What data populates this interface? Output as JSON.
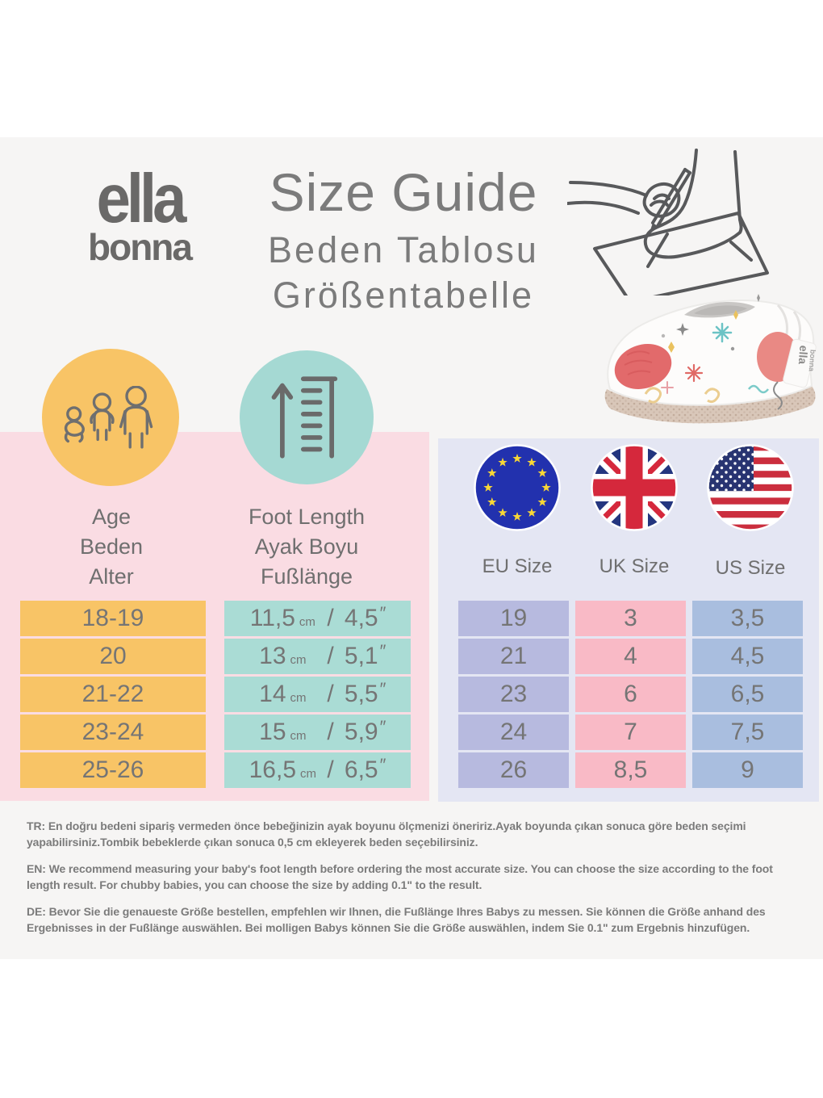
{
  "colors": {
    "card-bg": "#f6f5f4",
    "pink-panel": "#fadce3",
    "lavender-panel": "#e4e6f3",
    "yellow": "#f8c466",
    "teal-circle": "#a5d9d3",
    "teal-cell": "#aadcd5",
    "eu-cell": "#b7badf",
    "uk-cell": "#f9bac6",
    "us-cell": "#a9bedf",
    "ink": "#757575",
    "title-ink": "#7b7b7b",
    "logo-ink": "#6a6968",
    "label-ink": "#6f6f6f",
    "footnote-ink": "#7b7b7b"
  },
  "brand": {
    "line1": "ella",
    "line2": "bonna"
  },
  "title": {
    "main": "Size Guide",
    "sub1": "Beden Tablosu",
    "sub2": "Größentabelle"
  },
  "headers": {
    "age_lines": [
      "Age",
      "Beden",
      "Alter"
    ],
    "foot_lines": [
      "Foot Length",
      "Ayak Boyu",
      "Fußlänge"
    ],
    "eu": "EU Size",
    "uk": "UK Size",
    "us": "US Size"
  },
  "icons": {
    "family-icon": "baby-child-adult outline figures",
    "ruler-icon": "up-arrow beside ruler",
    "eu-flag-icon": "EU flag circle",
    "uk-flag-icon": "UK flag circle",
    "us-flag-icon": "US flag circle",
    "foot-measuring-illustration": "hand tracing a foot on paper with pencil",
    "shoe-photo": "white baby shoe with balloon and confetti print"
  },
  "shoe": {
    "tag_line1": "ella",
    "tag_line2": "bonna"
  },
  "table": {
    "age": [
      "18-19",
      "20",
      "21-22",
      "23-24",
      "25-26"
    ],
    "foot": [
      {
        "cm": "11,5",
        "inch": "4,5"
      },
      {
        "cm": "13",
        "inch": "5,1"
      },
      {
        "cm": "14",
        "inch": "5,5"
      },
      {
        "cm": "15",
        "inch": "5,9"
      },
      {
        "cm": "16,5",
        "inch": "6,5"
      }
    ],
    "cm_unit": "cm",
    "inch_mark": "″",
    "eu": [
      "19",
      "21",
      "23",
      "24",
      "26"
    ],
    "uk": [
      "3",
      "4",
      "6",
      "7",
      "8,5"
    ],
    "us": [
      "3,5",
      "4,5",
      "6,5",
      "7,5",
      "9"
    ]
  },
  "footnotes": {
    "tr": "TR: En doğru bedeni sipariş vermeden önce bebeğinizin ayak boyunu ölçmenizi öneririz.Ayak boyunda çıkan sonuca göre beden seçimi yapabilirsiniz.Tombik bebeklerde çıkan sonuca 0,5 cm ekleyerek beden seçebilirsiniz.",
    "en": "EN: We recommend measuring your baby's foot length before ordering the most accurate size. You can choose the size according to the foot length result. For chubby babies, you can choose the size by adding 0.1\"  to the result.",
    "de": "DE: Bevor Sie die genaueste Größe bestellen, empfehlen wir Ihnen, die Fußlänge Ihres Babys zu messen. Sie können die Größe anhand des Ergebnisses in der Fußlänge auswählen. Bei molligen Babys können Sie die Größe auswählen, indem Sie 0.1\" zum Ergebnis hinzufügen."
  },
  "chart_data": {
    "type": "table",
    "title": "Size Guide / Beden Tablosu / Größentabelle",
    "columns": [
      "Age (Age/Beden/Alter)",
      "Foot Length (cm)",
      "Foot Length (inch)",
      "EU Size",
      "UK Size",
      "US Size"
    ],
    "rows": [
      [
        "18-19",
        "11,5 cm",
        "4,5\"",
        "19",
        "3",
        "3,5"
      ],
      [
        "20",
        "13 cm",
        "5,1\"",
        "21",
        "4",
        "4,5"
      ],
      [
        "21-22",
        "14 cm",
        "5,5\"",
        "23",
        "6",
        "6,5"
      ],
      [
        "23-24",
        "15 cm",
        "5,9\"",
        "24",
        "7",
        "7,5"
      ],
      [
        "25-26",
        "16,5 cm",
        "6,5\"",
        "26",
        "8,5",
        "9"
      ]
    ]
  }
}
